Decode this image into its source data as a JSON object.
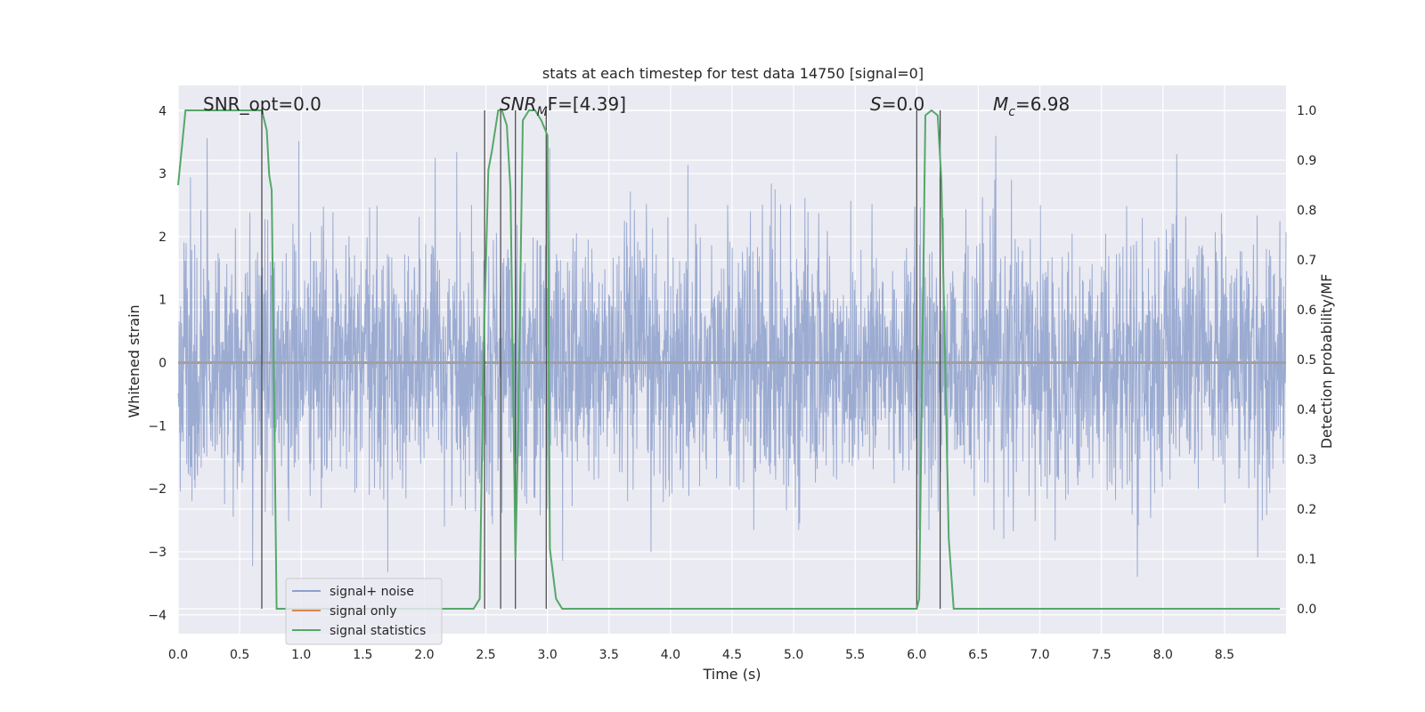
{
  "chart_data": {
    "type": "line",
    "title": "stats at each timestep for test data 14750 [signal=0]",
    "xlabel": "Time (s)",
    "ylabel_left": "Whitened strain",
    "ylabel_right": "Detection probability/MF",
    "xlim": [
      0.0,
      9.0
    ],
    "ylim_left": [
      -4.3,
      4.4
    ],
    "ylim_right": [
      -0.05,
      1.05
    ],
    "xticks": [
      "0.0",
      "0.5",
      "1.0",
      "1.5",
      "2.0",
      "2.5",
      "3.0",
      "3.5",
      "4.0",
      "4.5",
      "5.0",
      "5.5",
      "6.0",
      "6.5",
      "7.0",
      "7.5",
      "8.0",
      "8.5"
    ],
    "yticks_left": [
      "4",
      "3",
      "2",
      "1",
      "0",
      "−1",
      "−2",
      "−3",
      "−4"
    ],
    "yticks_right": [
      "1.0",
      "0.9",
      "0.8",
      "0.7",
      "0.6",
      "0.5",
      "0.4",
      "0.3",
      "0.2",
      "0.1",
      "0.0"
    ],
    "grid": true,
    "annotations": {
      "snr_opt": "SNR_opt=0.0",
      "snr_mf_sym": "SNR",
      "snr_mf_sub": "M",
      "snr_mf_rest": "F=[4.39]",
      "s_sym": "S",
      "s_rest": "=0.0",
      "mc_sym": "M",
      "mc_sub": "c",
      "mc_rest": "=6.98"
    },
    "legend": {
      "location": "lower-left",
      "entries": [
        {
          "label": "signal+ noise",
          "color": "#8da0cb"
        },
        {
          "label": "signal only",
          "color": "#dd8452"
        },
        {
          "label": "signal statistics",
          "color": "#55a868"
        }
      ]
    },
    "series": [
      {
        "name": "signal+ noise",
        "axis": "left",
        "style": "noise",
        "color": "#8da0cb",
        "duration": 9.0,
        "typical_amplitude": 1.0,
        "peak_amplitude": 3.6
      },
      {
        "name": "signal only",
        "axis": "left",
        "style": "line",
        "color": "#dd8452",
        "x": [
          0.0,
          9.0
        ],
        "y": [
          0.0,
          0.0
        ]
      },
      {
        "name": "signal statistics",
        "axis": "right",
        "style": "line",
        "color": "#55a868",
        "x": [
          0.0,
          0.06,
          0.12,
          0.5,
          0.65,
          0.68,
          0.72,
          0.74,
          0.76,
          0.8,
          0.82,
          0.85,
          1.0,
          1.5,
          2.0,
          2.4,
          2.45,
          2.48,
          2.52,
          2.55,
          2.6,
          2.63,
          2.67,
          2.7,
          2.74,
          2.76,
          2.8,
          2.85,
          2.9,
          2.95,
          3.0,
          3.02,
          3.07,
          3.12,
          3.5,
          4.0,
          4.5,
          5.0,
          5.5,
          6.0,
          6.02,
          6.07,
          6.12,
          6.17,
          6.2,
          6.26,
          6.3,
          6.35,
          7.0,
          7.5,
          8.0,
          8.5,
          8.8,
          8.95
        ],
        "y": [
          0.85,
          1.0,
          1.0,
          1.0,
          1.0,
          1.0,
          0.96,
          0.87,
          0.84,
          0.0,
          0.0,
          0.0,
          0.0,
          0.0,
          0.0,
          0.0,
          0.02,
          0.5,
          0.88,
          0.92,
          1.0,
          1.0,
          0.97,
          0.84,
          0.1,
          0.33,
          0.98,
          1.0,
          1.0,
          0.98,
          0.95,
          0.12,
          0.02,
          0.0,
          0.0,
          0.0,
          0.0,
          0.0,
          0.0,
          0.0,
          0.02,
          0.99,
          1.0,
          0.99,
          0.86,
          0.14,
          0.0,
          0.0,
          0.0,
          0.0,
          0.0,
          0.0,
          0.0,
          0.0
        ]
      }
    ],
    "vertical_markers": [
      0.68,
      2.49,
      2.62,
      2.74,
      2.99,
      6.0,
      6.19
    ]
  }
}
